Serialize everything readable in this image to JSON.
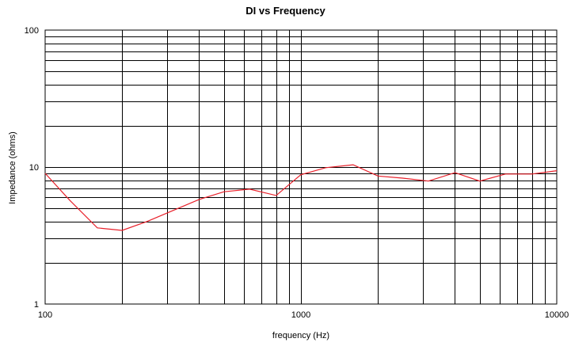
{
  "chart_data": {
    "type": "line",
    "title": "DI vs Frequency",
    "xlabel": "frequency (Hz)",
    "ylabel": "Impedance (ohms)",
    "x_scale": "log",
    "y_scale": "log",
    "xlim": [
      100,
      10000
    ],
    "ylim": [
      1,
      100
    ],
    "x_ticks": [
      "100",
      "1000",
      "10000"
    ],
    "y_ticks": [
      "1",
      "10",
      "100"
    ],
    "grid": true,
    "legend": "none",
    "series": [
      {
        "color": "#e8202a",
        "x": [
          100,
          125,
          160,
          200,
          250,
          315,
          400,
          500,
          630,
          800,
          1000,
          1250,
          1600,
          2000,
          2500,
          3150,
          4000,
          5000,
          6300,
          8000,
          10000
        ],
        "y": [
          9.0,
          5.7,
          3.6,
          3.45,
          4.0,
          4.8,
          5.8,
          6.6,
          6.9,
          6.2,
          8.8,
          9.9,
          10.4,
          8.6,
          8.3,
          7.9,
          9.1,
          7.9,
          8.9,
          8.9,
          9.4
        ]
      }
    ]
  }
}
